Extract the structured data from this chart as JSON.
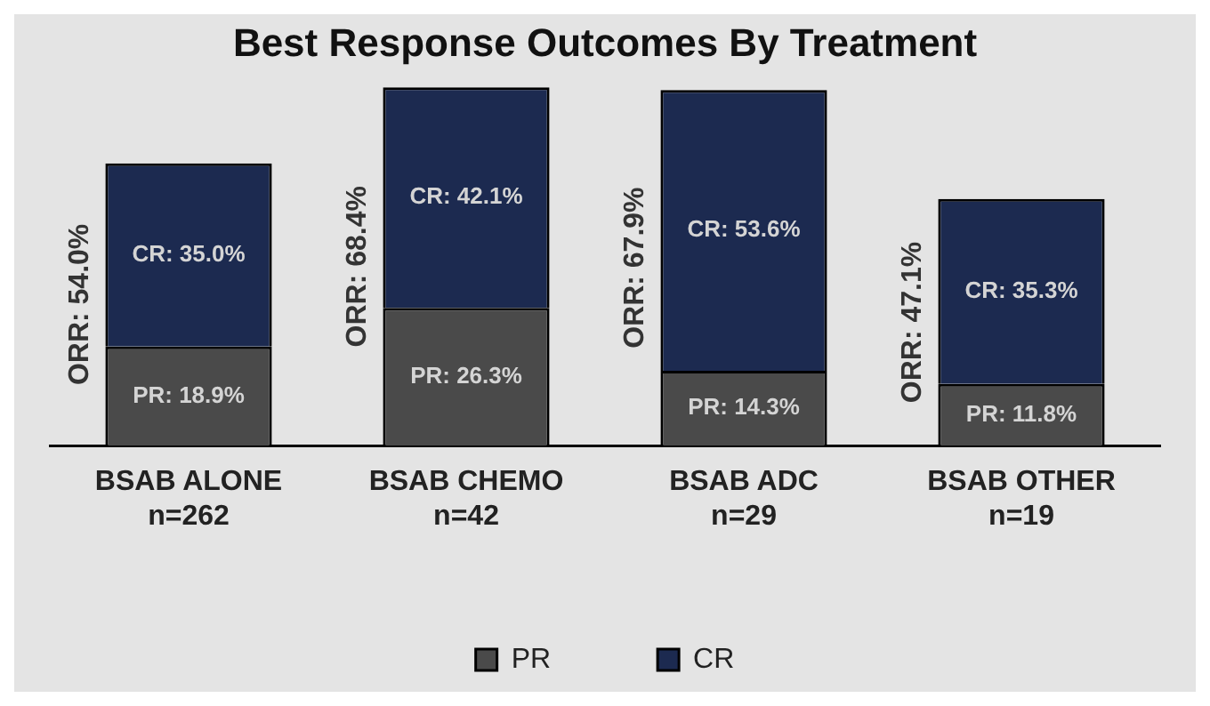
{
  "chart_data": {
    "type": "bar",
    "title": "Best Response Outcomes By Treatment",
    "stacked": true,
    "legend": "bottom",
    "grid": false,
    "categories": [
      "BSAB ALONE\nn=262",
      "BSAB CHEMO\nn=42",
      "BSAB ADC\nn=29",
      "BSAB OTHER\nn=19"
    ],
    "series": [
      {
        "name": "PR",
        "color": "#4a4a4a",
        "values": [
          18.9,
          26.3,
          14.3,
          11.8
        ],
        "value_labels": [
          "PR: 18.9%",
          "PR: 26.3%",
          "PR: 14.3%",
          "PR: 11.8%"
        ]
      },
      {
        "name": "CR",
        "color": "#1c2a50",
        "values": [
          35.0,
          42.1,
          53.6,
          35.3
        ],
        "value_labels": [
          "CR: 35.0%",
          "CR: 42.1%",
          "CR: 53.6%",
          "CR: 35.3%"
        ]
      }
    ],
    "totals": [
      "ORR: 54.0%",
      "ORR: 68.4%",
      "ORR: 67.9%",
      "ORR: 47.1%"
    ]
  }
}
